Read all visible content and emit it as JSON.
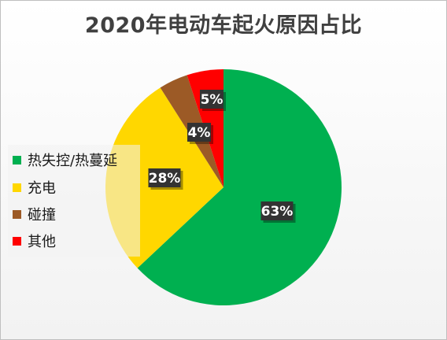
{
  "chart_data": {
    "type": "pie",
    "title": "2020年电动车起火原因占比",
    "categories": [
      "热失控/热蔓延",
      "充电",
      "碰撞",
      "其他"
    ],
    "values": [
      63,
      28,
      4,
      5
    ],
    "data_labels": [
      "63%",
      "28%",
      "4%",
      "5%"
    ],
    "colors": [
      "#00b050",
      "#ffd700",
      "#9c5a26",
      "#ff0000"
    ],
    "start_angle_deg": 0,
    "direction": "clockwise",
    "legend_position": "left",
    "unit": "%"
  }
}
